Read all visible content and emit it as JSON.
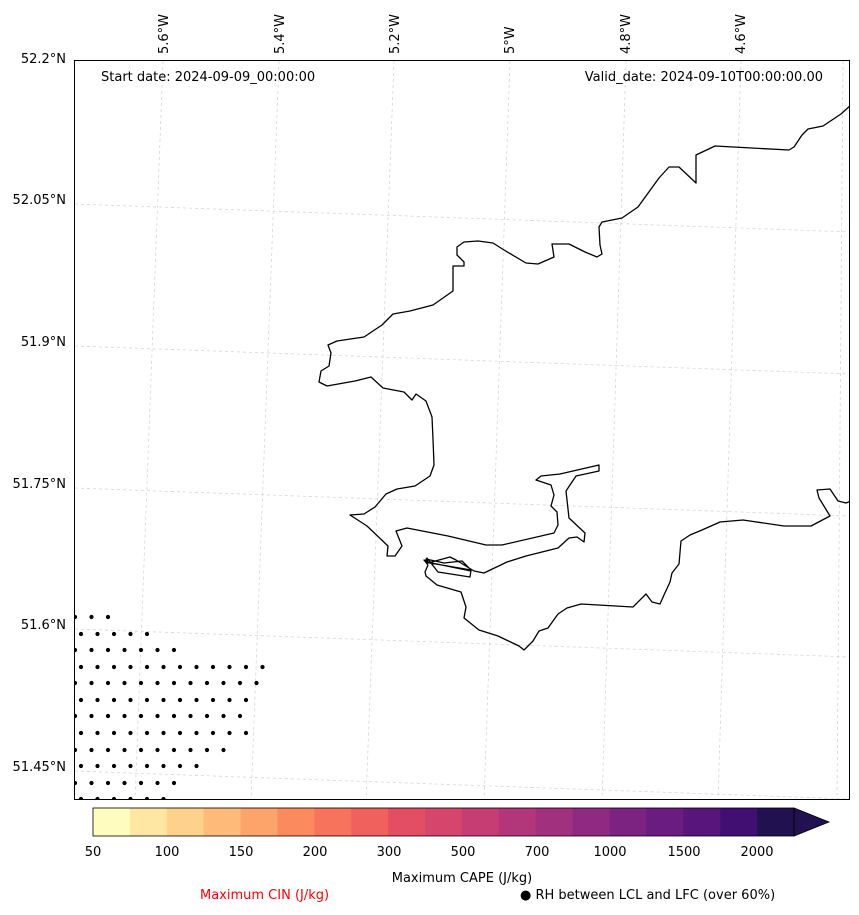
{
  "map": {
    "start_date": "Start date: 2024-09-09_00:00:00",
    "valid_date": "Valid_date: 2024-09-10T00:00:00.00",
    "lon_labels": [
      "5.6°W",
      "5.4°W",
      "5.2°W",
      "5°W",
      "4.8°W",
      "4.6°W"
    ],
    "lat_labels": [
      "52.2°N",
      "52.05°N",
      "51.9°N",
      "51.75°N",
      "51.6°N",
      "51.45°N"
    ]
  },
  "colorbar": {
    "title": "Maximum CAPE (J/kg)",
    "ticks": [
      "50",
      "100",
      "150",
      "200",
      "300",
      "500",
      "700",
      "1000",
      "1500",
      "2000"
    ],
    "colors": [
      "#fefdbf",
      "#fee7a2",
      "#fed28c",
      "#fdba79",
      "#fca46a",
      "#fb8b5e",
      "#f7735c",
      "#f0605d",
      "#e34e64",
      "#d6456b",
      "#c53d73",
      "#b2377a",
      "#a1307e",
      "#8e2a81",
      "#7c2382",
      "#6a1c81",
      "#58157b",
      "#3f0f72",
      "#221150"
    ],
    "extend_color": "#221150"
  },
  "legend": {
    "cin_label": "Maximum CIN (J/kg)",
    "cin_color": "#ff0000",
    "rh_label": "● RH between LCL and LFC (over 60%)"
  }
}
